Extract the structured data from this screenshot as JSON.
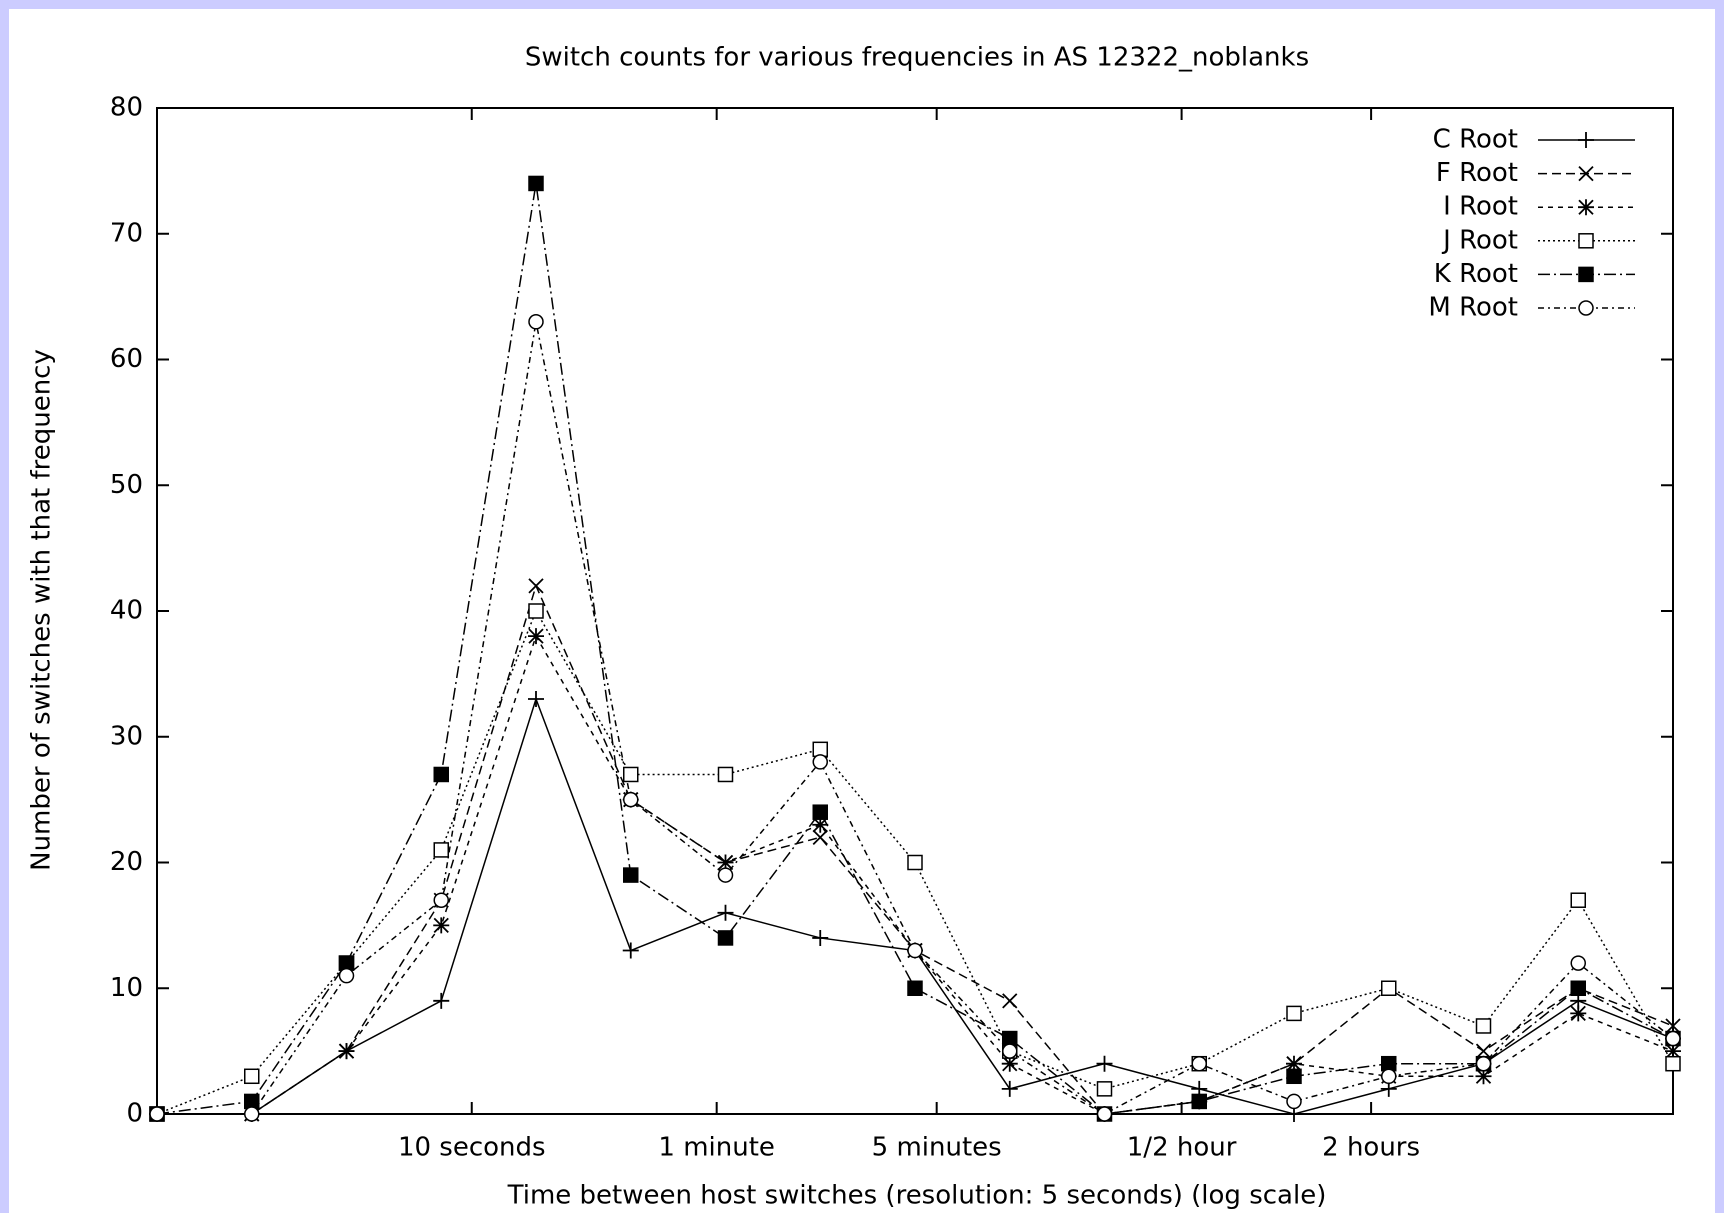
{
  "chart_data": {
    "type": "line",
    "title": "Switch counts for various frequencies in AS 12322_noblanks",
    "x_label": "Time between host switches (resolution: 5 seconds) (log scale)",
    "y_label": "Number of switches with that frequency",
    "x": [
      1,
      2,
      4,
      8,
      16,
      32,
      64,
      128,
      256,
      512,
      1024,
      2048,
      4096,
      8192,
      16384,
      32768,
      65536
    ],
    "x_log_base": 2,
    "xlim": [
      1,
      65536
    ],
    "xticks": [
      {
        "value": 10,
        "label": "10 seconds"
      },
      {
        "value": 60,
        "label": "1 minute"
      },
      {
        "value": 300,
        "label": "5 minutes"
      },
      {
        "value": 1800,
        "label": "1/2 hour"
      },
      {
        "value": 7200,
        "label": "2 hours"
      }
    ],
    "ylim": [
      0,
      80
    ],
    "yticks": [
      0,
      10,
      20,
      30,
      40,
      50,
      60,
      70,
      80
    ],
    "legend": "top-right",
    "series": [
      {
        "name": "C Root",
        "color": "#000000",
        "values": [
          0,
          0,
          5,
          9,
          33,
          13,
          16,
          14,
          13,
          2,
          4,
          2,
          0,
          2,
          4,
          9,
          6
        ]
      },
      {
        "name": "F Root",
        "color": "#000000",
        "values": [
          0,
          0,
          5,
          17,
          42,
          25,
          20,
          22,
          13,
          9,
          0,
          1,
          4,
          10,
          5,
          10,
          7
        ]
      },
      {
        "name": "I Root",
        "color": "#000000",
        "values": [
          0,
          0,
          5,
          15,
          38,
          25,
          20,
          23,
          13,
          4,
          0,
          1,
          4,
          3,
          3,
          8,
          5
        ]
      },
      {
        "name": "J Root",
        "color": "#000000",
        "values": [
          0,
          3,
          12,
          21,
          40,
          27,
          27,
          29,
          20,
          5,
          2,
          4,
          8,
          10,
          7,
          17,
          4
        ]
      },
      {
        "name": "K Root",
        "color": "#000000",
        "values": [
          0,
          1,
          12,
          27,
          74,
          19,
          14,
          24,
          10,
          6,
          0,
          1,
          3,
          4,
          4,
          10,
          6
        ]
      },
      {
        "name": "M Root",
        "color": "#000000",
        "values": [
          0,
          0,
          11,
          17,
          63,
          25,
          19,
          28,
          13,
          5,
          0,
          4,
          1,
          3,
          4,
          12,
          6
        ]
      }
    ]
  }
}
